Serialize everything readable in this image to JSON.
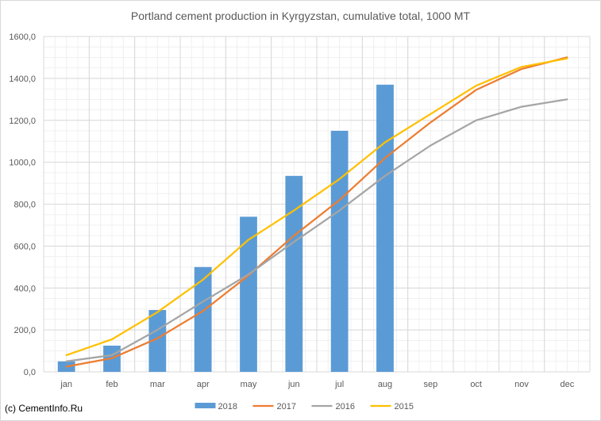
{
  "chart_data": {
    "type": "bar",
    "title": "Portland cement production in Kyrgyzstan, cumulative total, 1000 MT",
    "categories": [
      "jan",
      "feb",
      "mar",
      "apr",
      "may",
      "jun",
      "jul",
      "aug",
      "sep",
      "oct",
      "nov",
      "dec"
    ],
    "ylim": [
      0,
      1600
    ],
    "yticks": [
      "0,0",
      "200,0",
      "400,0",
      "600,0",
      "800,0",
      "1000,0",
      "1200,0",
      "1400,0",
      "1600,0"
    ],
    "grid": true,
    "legend_position": "bottom",
    "series": [
      {
        "name": "2018",
        "type": "bar",
        "color": "#5b9bd5",
        "values": [
          50,
          125,
          295,
          500,
          740,
          935,
          1150,
          1370,
          null,
          null,
          null,
          null
        ]
      },
      {
        "name": "2017",
        "type": "line",
        "color": "#ed7d31",
        "values": [
          25,
          65,
          160,
          290,
          460,
          650,
          820,
          1020,
          1190,
          1345,
          1445,
          1500
        ]
      },
      {
        "name": "2016",
        "type": "line",
        "color": "#a5a5a5",
        "values": [
          50,
          80,
          200,
          335,
          465,
          620,
          770,
          935,
          1080,
          1200,
          1265,
          1300
        ]
      },
      {
        "name": "2015",
        "type": "line",
        "color": "#ffc000",
        "values": [
          80,
          155,
          285,
          440,
          630,
          770,
          920,
          1095,
          1230,
          1365,
          1455,
          1495
        ]
      }
    ]
  },
  "footer": {
    "copyright": "(c) CementInfo.Ru"
  }
}
